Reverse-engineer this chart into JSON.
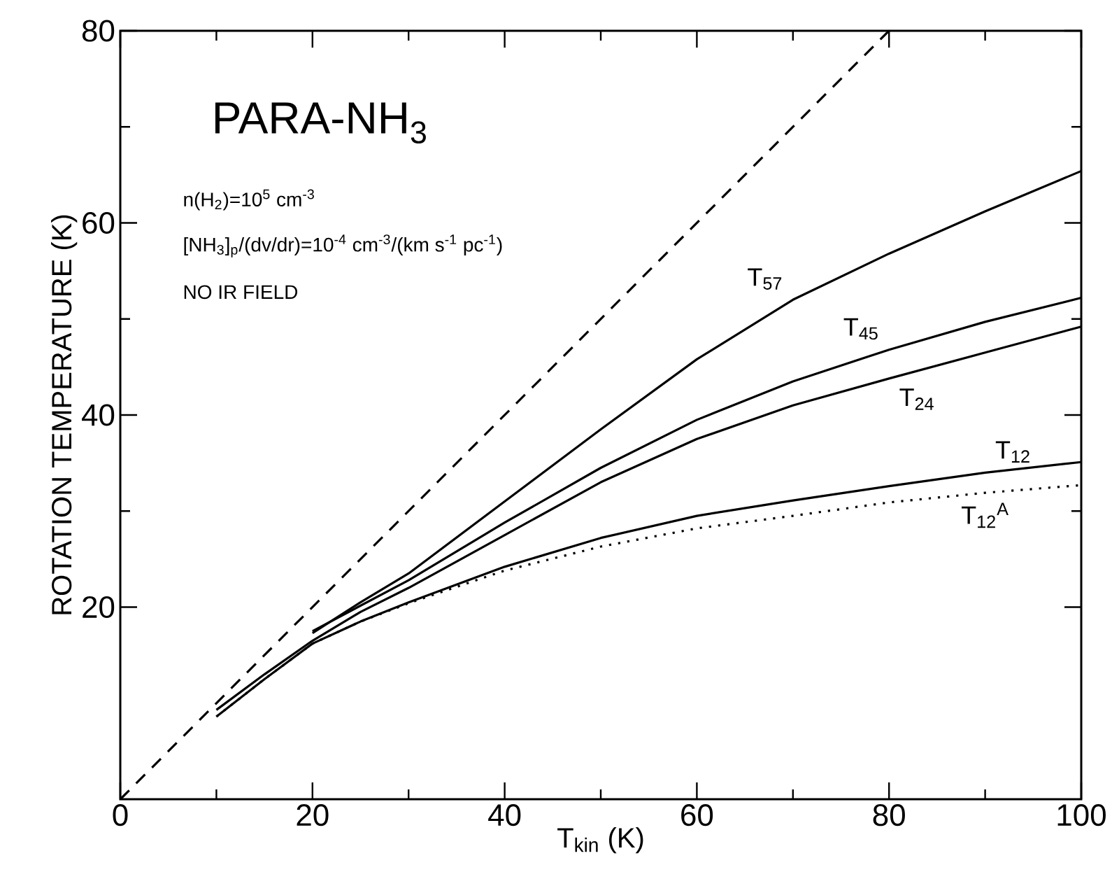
{
  "chart_data": {
    "type": "line",
    "title": "PARA-NH$_{3}$",
    "xlabel": "T$_{kin}$ (K)",
    "ylabel": "ROTATION TEMPERATURE (K)",
    "annotations": [
      "n(H$_{2}$)=10$^{5}$ cm$^{-3}$",
      "[NH$_{3}$]$_{p}$/(dv/dr)=10$^{-4}$ cm$^{-3}$/(km s$^{-1}$ pc$^{-1}$)",
      "NO IR FIELD"
    ],
    "xlim": [
      0,
      100
    ],
    "ylim": [
      0,
      80
    ],
    "xticks": [
      0,
      20,
      40,
      60,
      80,
      100
    ],
    "yticks": [
      20,
      40,
      60,
      80
    ],
    "marker": "none",
    "series": [
      {
        "color": "#000000",
        "line_style": "dashed",
        "x": [
          0,
          80
        ],
        "values": [
          0,
          80
        ]
      },
      {
        "name": "T$_{57}$",
        "color": "#000000",
        "line_style": "solid",
        "x": [
          20,
          25,
          30,
          40,
          50,
          60,
          70,
          80,
          90,
          100
        ],
        "values": [
          17.3,
          20.5,
          23.5,
          31,
          38.5,
          45.8,
          52,
          56.8,
          61.2,
          65.4
        ]
      },
      {
        "name": "T$_{45}$",
        "color": "#000000",
        "line_style": "solid",
        "x": [
          20,
          30,
          40,
          50,
          60,
          70,
          80,
          90,
          100
        ],
        "values": [
          17.5,
          22.8,
          28.8,
          34.5,
          39.5,
          43.5,
          46.8,
          49.7,
          52.2
        ]
      },
      {
        "name": "T$_{24}$",
        "color": "#000000",
        "line_style": "solid",
        "x": [
          10,
          15,
          20,
          25,
          30,
          40,
          50,
          60,
          70,
          80,
          90,
          100
        ],
        "values": [
          9.3,
          13,
          16.5,
          19.5,
          22,
          27.5,
          33,
          37.5,
          41,
          43.8,
          46.5,
          49.2
        ]
      },
      {
        "name": "T$_{12}$",
        "color": "#000000",
        "line_style": "solid",
        "x": [
          10,
          15,
          20,
          25,
          30,
          40,
          50,
          60,
          70,
          80,
          90,
          100
        ],
        "values": [
          8.6,
          12.5,
          16.2,
          18.5,
          20.5,
          24.2,
          27.2,
          29.5,
          31.1,
          32.6,
          34,
          35.1
        ]
      },
      {
        "name": "T$_{12}$$^{A}$",
        "color": "#000000",
        "line_style": "dotted",
        "x": [
          10,
          15,
          20,
          25,
          30,
          40,
          50,
          60,
          70,
          80,
          90,
          100
        ],
        "values": [
          8.6,
          12.5,
          16.2,
          18.5,
          20.4,
          23.8,
          26.3,
          28.2,
          29.5,
          30.9,
          31.9,
          32.7
        ]
      }
    ]
  }
}
